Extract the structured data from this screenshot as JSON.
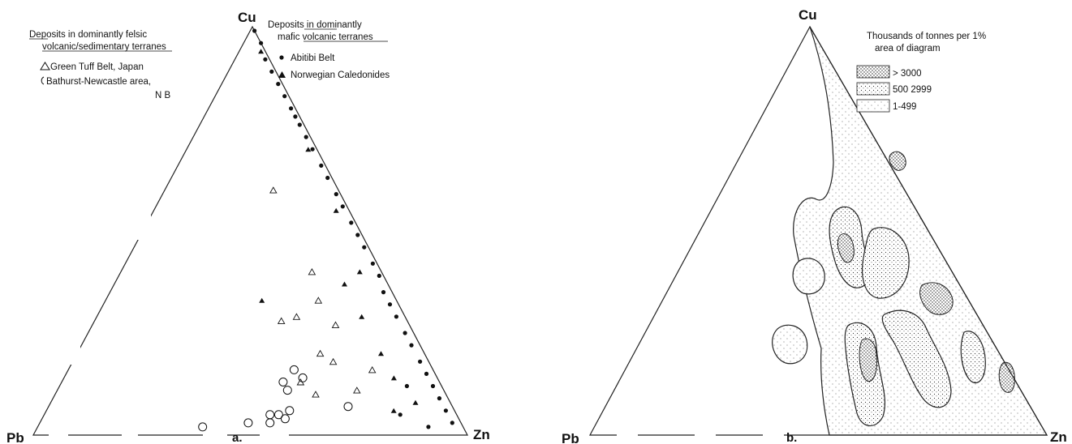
{
  "chart_data": [
    {
      "type": "scatter",
      "panel_label": "a.",
      "vertices": {
        "top": "Cu",
        "left": "Pb",
        "right": "Zn"
      },
      "legend_felsic": {
        "heading_1": "Deposits in dominantly felsic",
        "heading_2": "volcanic/sedimentary terranes",
        "entries": [
          "Green Tuff Belt, Japan",
          "Bathurst-Newcastle area,",
          "N B"
        ]
      },
      "legend_mafic": {
        "heading_1": "Deposits in dominantly",
        "heading_2": "mafic volcanic terranes",
        "entries": [
          "Abitibi Belt",
          "Norwegian Caledonides"
        ]
      },
      "series": [
        {
          "name": "Abitibi Belt",
          "marker": "filled-circle",
          "points": [
            [
              0.99,
              0.01,
              0
            ],
            [
              0.96,
              0.04,
              0
            ],
            [
              0.92,
              0.07,
              0.01
            ],
            [
              0.89,
              0.1,
              0.01
            ],
            [
              0.86,
              0.13,
              0.01
            ],
            [
              0.83,
              0.16,
              0.01
            ],
            [
              0.8,
              0.19,
              0.01
            ],
            [
              0.78,
              0.21,
              0.01
            ],
            [
              0.76,
              0.23,
              0.01
            ],
            [
              0.73,
              0.26,
              0.01
            ],
            [
              0.7,
              0.29,
              0.01
            ],
            [
              0.66,
              0.33,
              0.01
            ],
            [
              0.63,
              0.36,
              0.01
            ],
            [
              0.59,
              0.4,
              0.01
            ],
            [
              0.56,
              0.43,
              0.01
            ],
            [
              0.52,
              0.47,
              0.01
            ],
            [
              0.49,
              0.5,
              0.01
            ],
            [
              0.46,
              0.53,
              0.01
            ],
            [
              0.42,
              0.57,
              0.01
            ],
            [
              0.39,
              0.6,
              0.01
            ],
            [
              0.35,
              0.63,
              0.02
            ],
            [
              0.32,
              0.66,
              0.02
            ],
            [
              0.29,
              0.69,
              0.02
            ],
            [
              0.25,
              0.73,
              0.02
            ],
            [
              0.22,
              0.76,
              0.02
            ],
            [
              0.18,
              0.8,
              0.02
            ],
            [
              0.15,
              0.83,
              0.02
            ],
            [
              0.12,
              0.86,
              0.02
            ],
            [
              0.09,
              0.89,
              0.02
            ],
            [
              0.06,
              0.92,
              0.02
            ],
            [
              0.03,
              0.95,
              0.02
            ],
            [
              0.12,
              0.8,
              0.08
            ],
            [
              0.05,
              0.82,
              0.13
            ],
            [
              0.02,
              0.9,
              0.08
            ]
          ]
        },
        {
          "name": "Norwegian Caledonides",
          "marker": "filled-triangle",
          "points": [
            [
              0.94,
              0.05,
              0.01
            ],
            [
              0.7,
              0.28,
              0.02
            ],
            [
              0.55,
              0.42,
              0.03
            ],
            [
              0.4,
              0.55,
              0.05
            ],
            [
              0.37,
              0.53,
              0.1
            ],
            [
              0.29,
              0.61,
              0.1
            ],
            [
              0.33,
              0.36,
              0.31
            ],
            [
              0.2,
              0.7,
              0.1
            ],
            [
              0.14,
              0.76,
              0.1
            ],
            [
              0.08,
              0.84,
              0.08
            ],
            [
              0.06,
              0.8,
              0.14
            ]
          ]
        },
        {
          "name": "Green Tuff Belt, Japan",
          "marker": "open-triangle",
          "points": [
            [
              0.6,
              0.25,
              0.15
            ],
            [
              0.4,
              0.44,
              0.16
            ],
            [
              0.33,
              0.49,
              0.18
            ],
            [
              0.29,
              0.46,
              0.25
            ],
            [
              0.28,
              0.43,
              0.29
            ],
            [
              0.27,
              0.56,
              0.17
            ],
            [
              0.2,
              0.56,
              0.24
            ],
            [
              0.13,
              0.55,
              0.32
            ],
            [
              0.1,
              0.6,
              0.3
            ],
            [
              0.16,
              0.7,
              0.14
            ],
            [
              0.11,
              0.69,
              0.2
            ],
            [
              0.18,
              0.6,
              0.22
            ]
          ]
        },
        {
          "name": "Bathurst-Newcastle area, N B",
          "marker": "open-circle",
          "points": [
            [
              0.16,
              0.52,
              0.32
            ],
            [
              0.14,
              0.55,
              0.31
            ],
            [
              0.13,
              0.51,
              0.36
            ],
            [
              0.11,
              0.53,
              0.36
            ],
            [
              0.06,
              0.56,
              0.38
            ],
            [
              0.05,
              0.54,
              0.41
            ],
            [
              0.04,
              0.56,
              0.4
            ],
            [
              0.03,
              0.53,
              0.44
            ],
            [
              0.02,
              0.38,
              0.6
            ],
            [
              0.03,
              0.48,
              0.49
            ],
            [
              0.07,
              0.69,
              0.24
            ],
            [
              0.05,
              0.52,
              0.43
            ]
          ]
        }
      ]
    },
    {
      "type": "heatmap",
      "panel_label": "b.",
      "vertices": {
        "top": "Cu",
        "left": "Pb",
        "right": "Zn"
      },
      "legend_title_1": "Thousands of tonnes per 1%",
      "legend_title_2": "area of diagram",
      "classes": [
        "> 3000",
        "500 2999",
        "1-499"
      ]
    }
  ]
}
